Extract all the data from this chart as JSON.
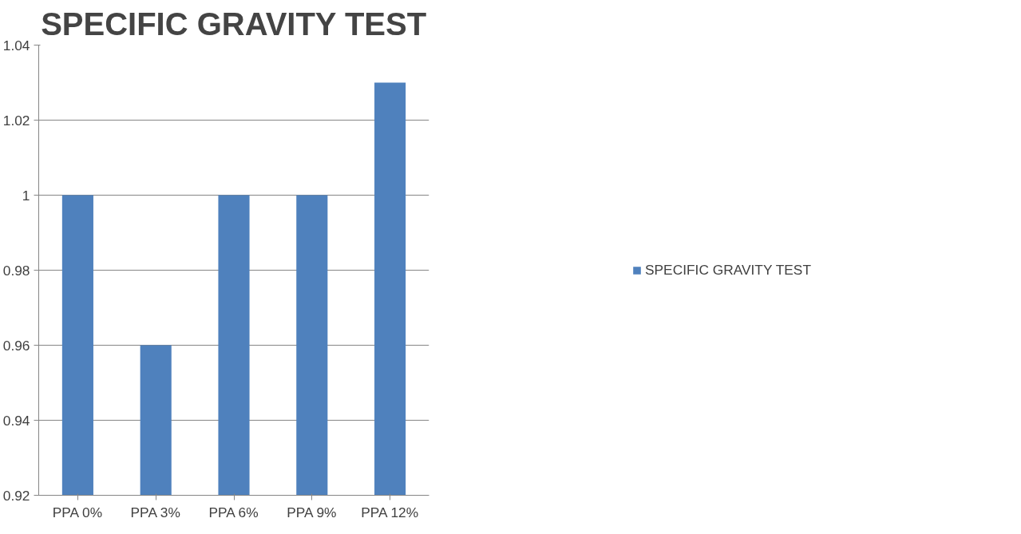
{
  "chart_data": {
    "type": "bar",
    "title": "SPECIFIC GRAVITY TEST",
    "categories": [
      "PPA 0%",
      "PPA 3%",
      "PPA 6%",
      "PPA 9%",
      "PPA 12%"
    ],
    "series": [
      {
        "name": "SPECIFIC GRAVITY TEST",
        "color": "#4f81bd",
        "values": [
          1,
          0.96,
          1,
          1,
          1.03
        ]
      }
    ],
    "ylim": [
      0.92,
      1.04
    ],
    "yticks": [
      0.92,
      0.94,
      0.96,
      0.98,
      1,
      1.02,
      1.04
    ],
    "grid": "y",
    "legend": "right"
  }
}
